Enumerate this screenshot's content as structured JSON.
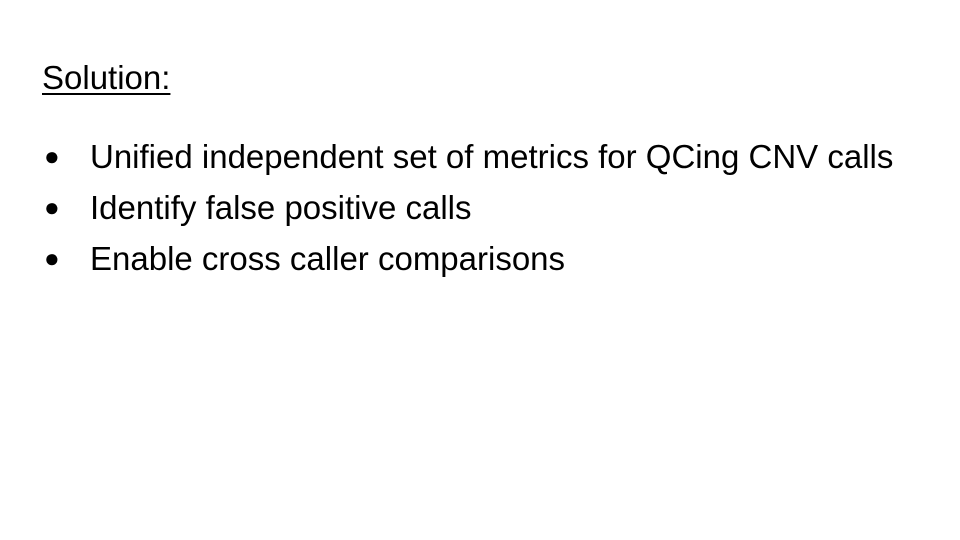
{
  "slide": {
    "heading": "Solution:",
    "bullets": [
      {
        "text": "Unified independent set of metrics for QCing CNV calls"
      },
      {
        "text": "Identify false positive calls"
      },
      {
        "text": "Enable cross caller comparisons"
      }
    ]
  },
  "colors": {
    "background": "#ffffff",
    "text": "#000000"
  }
}
